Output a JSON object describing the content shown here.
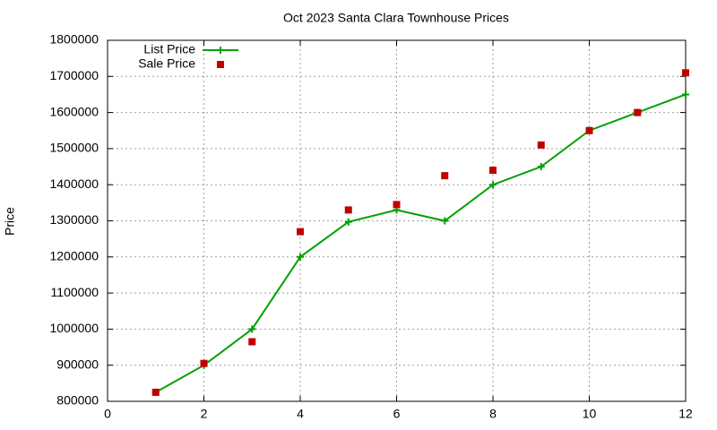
{
  "chart_data": {
    "type": "line",
    "title": "Oct 2023 Santa Clara Townhouse Prices",
    "y_label": "Price",
    "x": [
      1,
      2,
      3,
      4,
      5,
      6,
      7,
      8,
      9,
      10,
      11,
      12
    ],
    "series": [
      {
        "name": "List Price",
        "color": "#00a000",
        "marker": "plus",
        "line": true,
        "values": [
          825000,
          900000,
          1000000,
          1200000,
          1297000,
          1330000,
          1300000,
          1400000,
          1450000,
          1550000,
          1600000,
          1650000
        ]
      },
      {
        "name": "Sale Price",
        "color": "#c00000",
        "marker": "square",
        "line": false,
        "values": [
          825000,
          905000,
          965000,
          1270000,
          1330000,
          1345000,
          1425000,
          1440000,
          1510000,
          1550000,
          1600000,
          1710000
        ]
      }
    ],
    "xlim": [
      0,
      12
    ],
    "xticks": [
      0,
      2,
      4,
      6,
      8,
      10,
      12
    ],
    "ylim": [
      800000,
      1800000
    ],
    "yticks": [
      800000,
      900000,
      1000000,
      1100000,
      1200000,
      1300000,
      1400000,
      1500000,
      1600000,
      1700000,
      1800000
    ],
    "grid": true,
    "legend": "top-left"
  }
}
